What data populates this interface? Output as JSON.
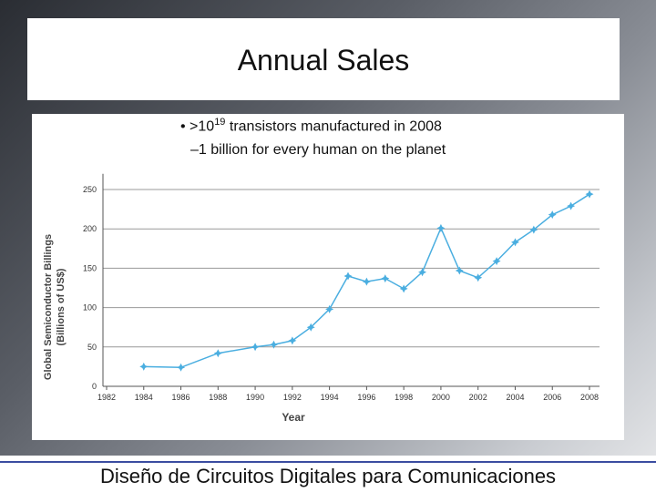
{
  "title": "Annual Sales",
  "bullets": [
    {
      "before": "• >10",
      "superscript": "19",
      "after": " transistors manufactured in 2008"
    },
    {
      "text": "–1 billion for every human on the planet"
    }
  ],
  "chart_data": {
    "type": "line",
    "ylabel": [
      "Global Semiconductor Billings",
      "(Billions of US$)"
    ],
    "xlabel": "Year",
    "x": [
      1984,
      1986,
      1988,
      1990,
      1991,
      1992,
      1993,
      1994,
      1995,
      1996,
      1997,
      1998,
      1999,
      2000,
      2001,
      2002,
      2003,
      2004,
      2005,
      2006,
      2007,
      2008
    ],
    "values": [
      25,
      24,
      42,
      50,
      53,
      58,
      75,
      98,
      140,
      133,
      137,
      124,
      145,
      201,
      147,
      138,
      159,
      183,
      199,
      218,
      229,
      244
    ],
    "color": "#4aaee0",
    "xlim": [
      1982,
      2008
    ],
    "xticks": [
      1982,
      1984,
      1986,
      1988,
      1990,
      1992,
      1994,
      1996,
      1998,
      2000,
      2002,
      2004,
      2006,
      2008
    ],
    "ylim": [
      0,
      270
    ],
    "yticks": [
      0,
      50,
      100,
      150,
      200,
      250
    ],
    "grid": true
  },
  "footer": "Diseño de Circuitos Digitales para Comunicaciones"
}
